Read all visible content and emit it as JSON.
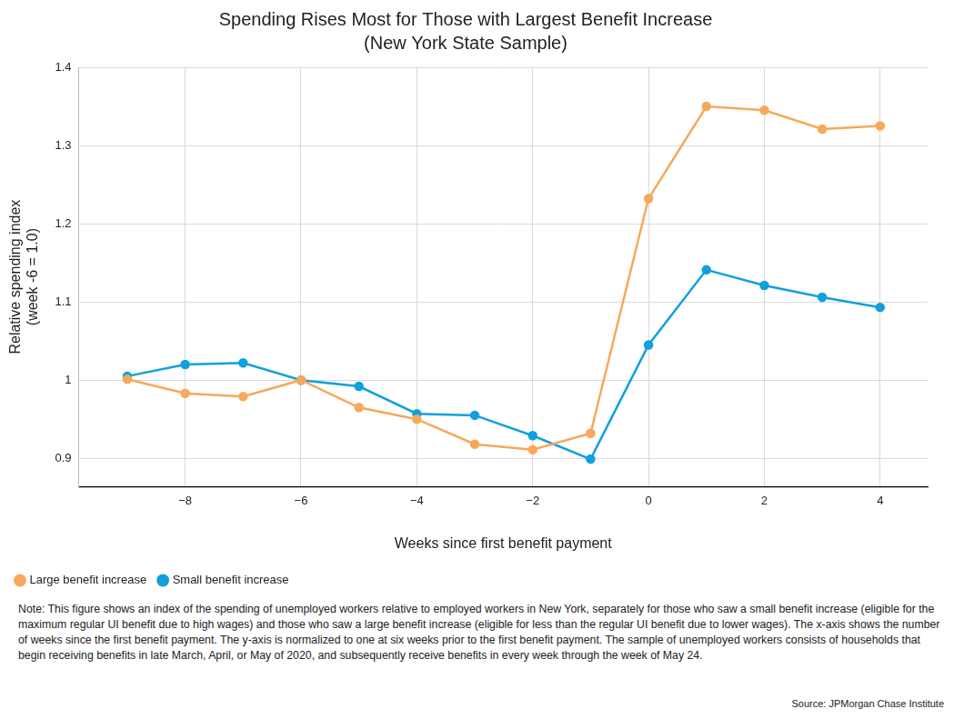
{
  "chart_data": {
    "type": "line",
    "title": "Spending Rises Most for Those with Largest Benefit Increase",
    "subtitle": "(New York State Sample)",
    "xlabel": "Weeks since first benefit payment",
    "ylabel": [
      "Relative spending index",
      "(week -6 = 1.0)"
    ],
    "x": [
      -9,
      -8,
      -7,
      -6,
      -5,
      -4,
      -3,
      -2,
      -1,
      0,
      1,
      2,
      3,
      4
    ],
    "series": [
      {
        "name": "Large benefit increase",
        "color": "#f7a85b",
        "values": [
          1.001,
          0.983,
          0.979,
          1.0,
          0.965,
          0.95,
          0.918,
          0.911,
          0.932,
          1.232,
          1.35,
          1.345,
          1.321,
          1.325
        ]
      },
      {
        "name": "Small benefit increase",
        "color": "#11a0dc",
        "values": [
          1.005,
          1.02,
          1.022,
          1.0,
          0.992,
          0.957,
          0.955,
          0.929,
          0.899,
          1.045,
          1.141,
          1.121,
          1.106,
          1.093
        ]
      }
    ],
    "xlim": [
      -9.84,
      4.82
    ],
    "xticks": [
      {
        "value": -8,
        "label": "−8"
      },
      {
        "value": -6,
        "label": "−6"
      },
      {
        "value": -4,
        "label": "−4"
      },
      {
        "value": -2,
        "label": "−2"
      },
      0,
      2,
      4
    ],
    "ylim": [
      0.864,
      1.4
    ],
    "yticks": [
      0.9,
      1,
      1.1,
      1.2,
      1.3,
      1.4
    ],
    "grid": true,
    "legend": "bottom left",
    "marker": "circle",
    "note": "Note: This figure shows an index of the spending of unemployed workers relative to employed workers in New York, separately for those who saw a small benefit increase (eligible for the maximum regular UI benefit due to high wages) and those who saw a large benefit increase (eligible for less than the regular UI benefit due to lower wages). The x-axis shows the number of weeks since the first benefit payment. The y-axis is normalized to one at six weeks prior to the first benefit payment. The sample of unemployed workers consists of households that begin receiving benefits in late March, April, or May of 2020, and subsequently receive benefits in every week through the week of May 24.",
    "source": "Source: JPMorgan Chase Institute"
  }
}
